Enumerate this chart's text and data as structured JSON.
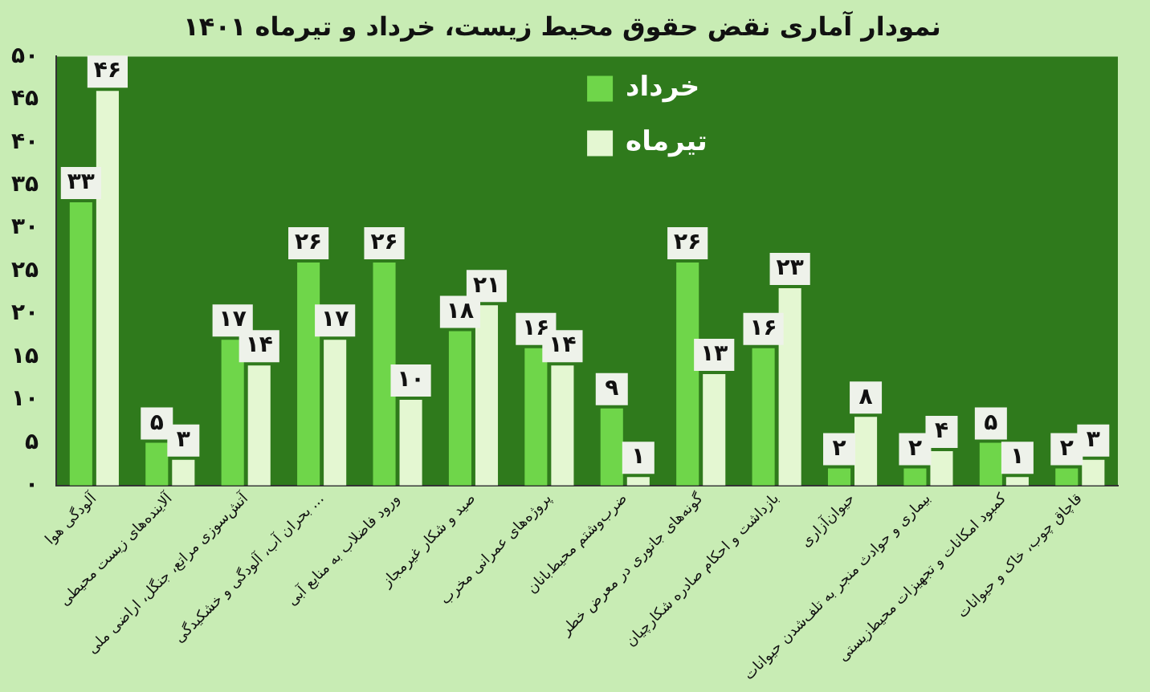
{
  "chart_data": {
    "type": "bar",
    "title": "نمودار آماری نقض حقوق محیط زیست، خرداد و تیرماه ۱۴۰۱",
    "categories": [
      "آلودگی هوا",
      "آلاینده‌های زیست محیطی",
      "آتش‌سوزی مراتع، جنگل، اراضی ملی",
      "بحران آب، آلودگی و خشکیدگی ...",
      "ورود فاضلاب به منابع آبی",
      "صید و شکار غیرمجاز",
      "پروژه‌های عمرانی مخرب",
      "ضرب‌وشتم محیط‌بانان",
      "گونه‌های جانوری در معرض خطر",
      "بازداشت و احکام صادره شکارچیان",
      "حیوان‌آزاری",
      "بیماری و حوادث منجر به تلف‌شدن حیوانات",
      "کمبود امکانات و تجهیزات محیط‌زیستی",
      "قاچاق چوب، خاک و حیوانات"
    ],
    "series": [
      {
        "name": "خرداد",
        "color": "#6fd64a",
        "values": [
          33,
          5,
          17,
          26,
          26,
          18,
          16,
          9,
          26,
          16,
          2,
          2,
          5,
          2
        ],
        "value_labels": [
          "۳۳",
          "۵",
          "۱۷",
          "۲۶",
          "۲۶",
          "۱۸",
          "۱۶",
          "۹",
          "۲۶",
          "۱۶",
          "۲",
          "۲",
          "۵",
          "۲"
        ]
      },
      {
        "name": "تیرماه",
        "color": "#e4f7d2",
        "values": [
          46,
          3,
          14,
          17,
          10,
          21,
          14,
          1,
          13,
          23,
          8,
          4,
          1,
          3
        ],
        "value_labels": [
          "۴۶",
          "۳",
          "۱۴",
          "۱۷",
          "۱۰",
          "۲۱",
          "۱۴",
          "۱",
          "۱۳",
          "۲۳",
          "۸",
          "۴",
          "۱",
          "۳"
        ]
      }
    ],
    "ylim": [
      0,
      50
    ],
    "yticks": [
      {
        "value": 0,
        "label": "۰"
      },
      {
        "value": 5,
        "label": "۵"
      },
      {
        "value": 10,
        "label": "۱۰"
      },
      {
        "value": 15,
        "label": "۱۵"
      },
      {
        "value": 20,
        "label": "۲۰"
      },
      {
        "value": 25,
        "label": "۲۵"
      },
      {
        "value": 30,
        "label": "۳۰"
      },
      {
        "value": 35,
        "label": "۳۵"
      },
      {
        "value": 40,
        "label": "۴۰"
      },
      {
        "value": 45,
        "label": "۴۵"
      },
      {
        "value": 50,
        "label": "۵۰"
      }
    ],
    "grid": false,
    "legend": "top"
  }
}
